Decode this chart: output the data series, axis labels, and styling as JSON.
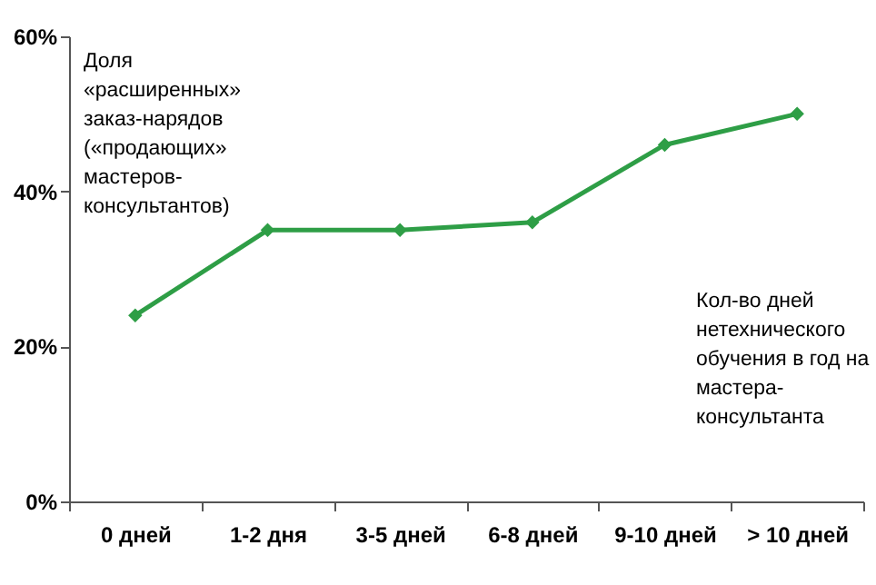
{
  "chart_data": {
    "type": "line",
    "ylabel": "Доля «расширенных» заказ-нарядов («продающих» мастеров-консультантов)",
    "xlabel": "Кол-во дней нетехнического обучения в год на мастера-консультанта",
    "categories": [
      "0 дней",
      "1-2 дня",
      "3-5 дней",
      "6-8 дней",
      "9-10 дней",
      "> 10 дней"
    ],
    "series": [
      {
        "color": "#2e9e46",
        "values": [
          24,
          35,
          35,
          36,
          46,
          50
        ]
      }
    ],
    "ylim": [
      0,
      60
    ],
    "yticks": [
      {
        "value": 0,
        "label": "0%"
      },
      {
        "value": 20,
        "label": "20%"
      },
      {
        "value": 40,
        "label": "40%"
      },
      {
        "value": 60,
        "label": "60%"
      }
    ],
    "grid": false,
    "legend": false,
    "marker": "diamond",
    "line_style": "solid"
  }
}
